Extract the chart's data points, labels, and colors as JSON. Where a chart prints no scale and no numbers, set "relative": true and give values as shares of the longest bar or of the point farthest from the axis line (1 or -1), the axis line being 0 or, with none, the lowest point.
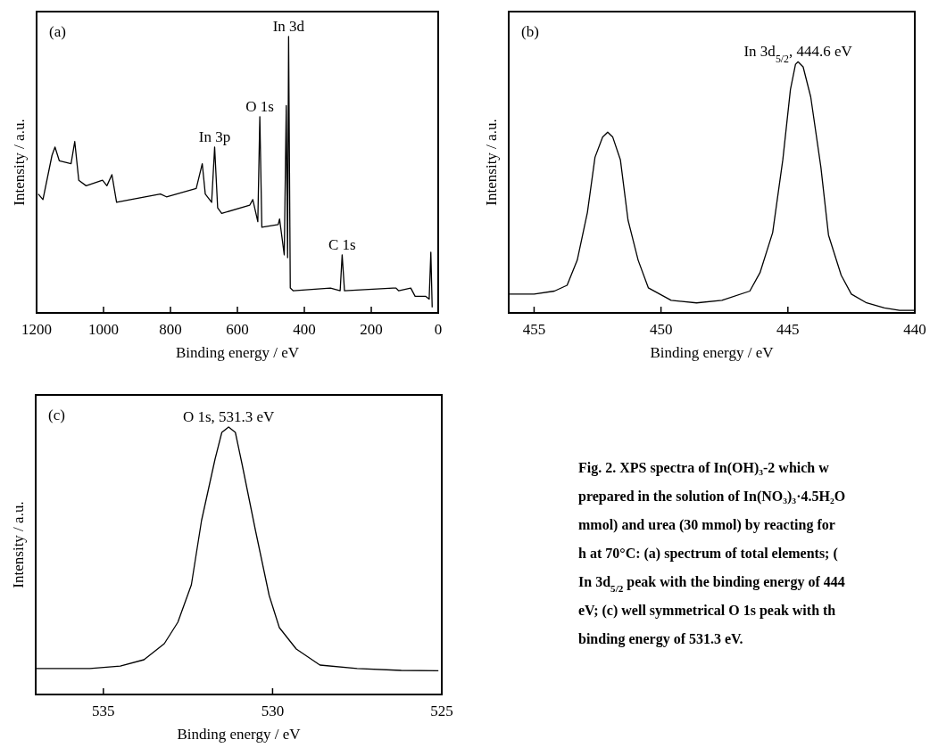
{
  "chart_data": [
    {
      "type": "line",
      "xlabel": "Binding energy / eV",
      "ylabel": "Intensity / a.u.",
      "relative": true,
      "tick_labels": "x",
      "xlim": [
        1200,
        0
      ],
      "xticks": [
        1200,
        1000,
        800,
        600,
        400,
        200,
        0
      ],
      "series": [
        {
          "color": "#000000",
          "x": [
            1195,
            1181,
            1154,
            1145,
            1132,
            1097,
            1086,
            1074,
            1052,
            1003,
            990,
            975,
            961,
            919,
            830,
            812,
            723,
            705,
            696,
            677,
            668,
            659,
            647,
            563,
            554,
            539,
            533,
            527,
            478,
            474,
            460,
            454,
            450,
            447,
            442,
            433,
            322,
            293,
            287,
            280,
            135,
            126,
            118,
            82,
            69,
            37,
            27,
            22,
            18
          ],
          "values": [
            0.43,
            0.41,
            0.57,
            0.6,
            0.55,
            0.54,
            0.62,
            0.48,
            0.46,
            0.48,
            0.46,
            0.5,
            0.4,
            0.41,
            0.43,
            0.42,
            0.45,
            0.54,
            0.43,
            0.4,
            0.6,
            0.38,
            0.36,
            0.39,
            0.41,
            0.33,
            0.71,
            0.31,
            0.32,
            0.34,
            0.21,
            0.75,
            0.2,
            1.0,
            0.09,
            0.08,
            0.09,
            0.08,
            0.21,
            0.08,
            0.09,
            0.09,
            0.08,
            0.09,
            0.06,
            0.06,
            0.05,
            0.22,
            0.02
          ]
        }
      ],
      "annotations": [
        "(a)",
        {
          "text": "In 3d",
          "x": 447,
          "y": 1.0
        },
        {
          "text": "O 1s",
          "x": 533,
          "y": 0.71
        },
        {
          "text": "In 3p",
          "x": 668,
          "y": 0.6
        },
        {
          "text": "C 1s",
          "x": 287,
          "y": 0.21
        }
      ]
    },
    {
      "type": "line",
      "xlabel": "Binding energy / eV",
      "ylabel": "Intensity / a.u.",
      "relative": true,
      "tick_labels": "x",
      "xlim": [
        456,
        440
      ],
      "xticks": [
        455,
        450,
        445,
        440
      ],
      "series": [
        {
          "color": "#000000",
          "x": [
            456,
            455,
            454.2,
            453.7,
            453.3,
            452.9,
            452.6,
            452.3,
            452.1,
            451.9,
            451.6,
            451.3,
            450.9,
            450.5,
            449.6,
            448.6,
            447.6,
            446.5,
            446.1,
            445.6,
            445.2,
            444.9,
            444.7,
            444.6,
            444.4,
            444.1,
            443.7,
            443.4,
            442.9,
            442.5,
            441.9,
            441.2,
            440.6,
            440
          ],
          "values": [
            0.075,
            0.075,
            0.087,
            0.11,
            0.21,
            0.4,
            0.62,
            0.7,
            0.72,
            0.7,
            0.61,
            0.37,
            0.21,
            0.1,
            0.05,
            0.04,
            0.05,
            0.087,
            0.16,
            0.32,
            0.61,
            0.89,
            0.99,
            1.0,
            0.98,
            0.86,
            0.58,
            0.31,
            0.15,
            0.075,
            0.04,
            0.02,
            0.01,
            0.01
          ]
        }
      ],
      "annotations": [
        "(b)",
        {
          "text": "In 3d$_{5/2}$, 444.6 eV",
          "x": 444.6,
          "y": 1.0
        }
      ]
    },
    {
      "type": "line",
      "xlabel": "Binding energy / eV",
      "ylabel": "Intensity / a.u.",
      "relative": true,
      "tick_labels": "x",
      "xlim": [
        537,
        525
      ],
      "xticks": [
        535,
        530,
        525
      ],
      "series": [
        {
          "color": "#000000",
          "x": [
            537,
            535.4,
            534.5,
            533.8,
            533.2,
            532.8,
            532.4,
            532.1,
            531.7,
            531.5,
            531.3,
            531.1,
            530.9,
            530.5,
            530.1,
            529.8,
            529.3,
            528.6,
            527.5,
            526.2,
            525.1
          ],
          "values": [
            0.097,
            0.097,
            0.106,
            0.13,
            0.19,
            0.27,
            0.41,
            0.65,
            0.88,
            0.98,
            1.0,
            0.98,
            0.86,
            0.61,
            0.37,
            0.25,
            0.17,
            0.11,
            0.097,
            0.09,
            0.089
          ]
        }
      ],
      "annotations": [
        "(c)",
        {
          "text": "O 1s, 531.3 eV",
          "x": 531.3,
          "y": 1.0
        }
      ]
    },
    {
      "type": "other",
      "annotations": [
        "Fig. 2.   XPS spectra of In(OH)₃-2 which w",
        "prepared in the solution of In(NO₃)₃·4.5H₂O",
        "mmol) and urea (30 mmol) by reacting for",
        "h at 70°C: (a) spectrum of total elements; (",
        "In 3d$_{5/2}$ peak with the binding energy of 444",
        "eV; (c) well symmetrical O 1s peak with th",
        "binding energy of 531.3 eV."
      ]
    }
  ]
}
